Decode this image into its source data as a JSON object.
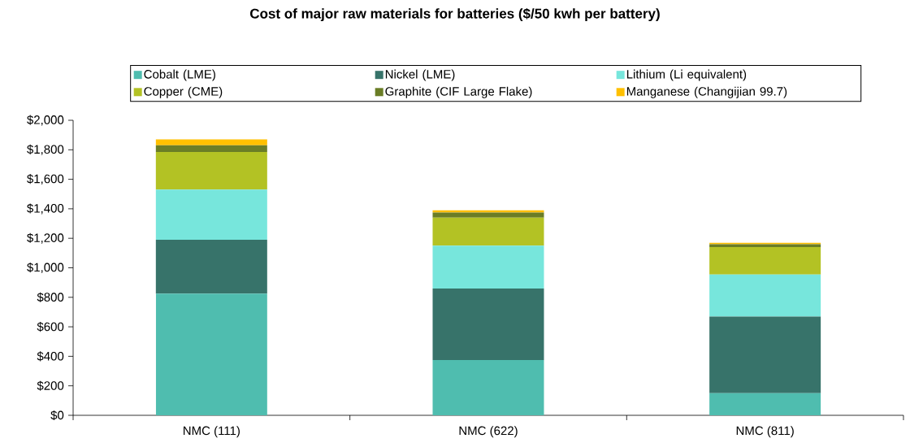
{
  "chart_data": {
    "type": "bar",
    "stacked": true,
    "title": "Cost of major raw materials for batteries ($/50 kwh per battery)",
    "categories": [
      "NMC (111)",
      "NMC (622)",
      "NMC (811)"
    ],
    "series": [
      {
        "name": "Cobalt (LME)",
        "color": "#4fbdaf",
        "values": [
          825,
          375,
          150
        ]
      },
      {
        "name": "Nickel (LME)",
        "color": "#37736a",
        "values": [
          365,
          485,
          520
        ]
      },
      {
        "name": "Lithium (Li equivalent)",
        "color": "#77e6dc",
        "values": [
          340,
          290,
          285
        ]
      },
      {
        "name": "Copper (CME)",
        "color": "#b3c224",
        "values": [
          255,
          190,
          185
        ]
      },
      {
        "name": "Graphite (CIF Large Flake)",
        "color": "#6a7d26",
        "values": [
          45,
          35,
          20
        ]
      },
      {
        "name": "Manganese (Changijian 99.7)",
        "color": "#ffc000",
        "values": [
          40,
          15,
          10
        ]
      }
    ],
    "ylim": [
      0,
      2000
    ],
    "yticks": [
      {
        "value": 0,
        "label": "$0"
      },
      {
        "value": 200,
        "label": "$200"
      },
      {
        "value": 400,
        "label": "$400"
      },
      {
        "value": 600,
        "label": "$600"
      },
      {
        "value": 800,
        "label": "$800"
      },
      {
        "value": 1000,
        "label": "$1,000"
      },
      {
        "value": 1200,
        "label": "$1,200"
      },
      {
        "value": 1400,
        "label": "$1,400"
      },
      {
        "value": 1600,
        "label": "$1,600"
      },
      {
        "value": 1800,
        "label": "$1,800"
      },
      {
        "value": 2000,
        "label": "$2,000"
      }
    ],
    "legend": "top",
    "grid": false
  }
}
